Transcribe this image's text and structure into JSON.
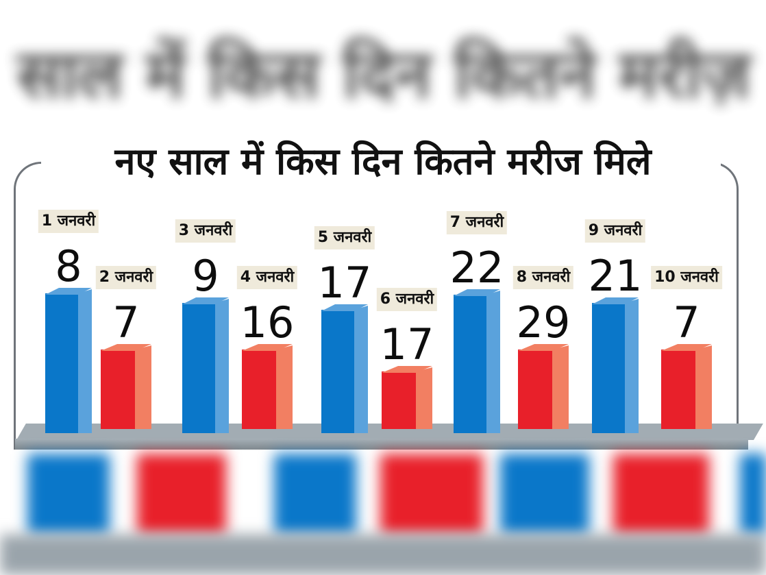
{
  "header": {
    "blurred_title": "साल में किस दिन कितने मरीज़"
  },
  "chart_data": {
    "type": "bar",
    "title": "नए साल में किस दिन कितने मरीज मिले",
    "categories": [
      "1 जनवरी",
      "2 जनवरी",
      "3 जनवरी",
      "4 जनवरी",
      "5 जनवरी",
      "6 जनवरी",
      "7 जनवरी",
      "8 जनवरी",
      "9 जनवरी",
      "10 जनवरी"
    ],
    "values": [
      8,
      7,
      9,
      16,
      17,
      17,
      22,
      29,
      21,
      7
    ],
    "colors": {
      "odd_day": "#0a77c9",
      "odd_day_side": "#5aa2dc",
      "even_day": "#e8202a",
      "even_day_side": "#f27f62"
    },
    "legend": "none",
    "grid": false
  }
}
